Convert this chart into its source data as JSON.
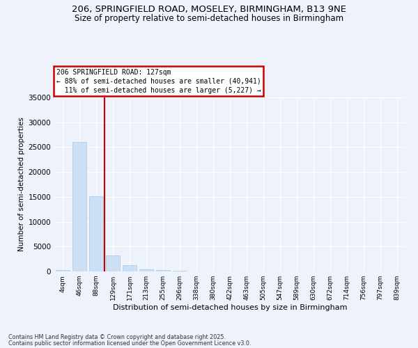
{
  "title_line1": "206, SPRINGFIELD ROAD, MOSELEY, BIRMINGHAM, B13 9NE",
  "title_line2": "Size of property relative to semi-detached houses in Birmingham",
  "xlabel": "Distribution of semi-detached houses by size in Birmingham",
  "ylabel": "Number of semi-detached properties",
  "categories": [
    "4sqm",
    "46sqm",
    "88sqm",
    "129sqm",
    "171sqm",
    "213sqm",
    "255sqm",
    "296sqm",
    "338sqm",
    "380sqm",
    "422sqm",
    "463sqm",
    "505sqm",
    "547sqm",
    "589sqm",
    "630sqm",
    "672sqm",
    "714sqm",
    "756sqm",
    "797sqm",
    "839sqm"
  ],
  "values": [
    350,
    26100,
    15100,
    3200,
    1200,
    450,
    250,
    150,
    50,
    30,
    20,
    15,
    10,
    8,
    5,
    4,
    3,
    2,
    2,
    1,
    1
  ],
  "bar_color": "#cce0f5",
  "bar_edgecolor": "#a8c8e8",
  "vline_color": "#cc0000",
  "annotation_text": "206 SPRINGFIELD ROAD: 127sqm\n← 88% of semi-detached houses are smaller (40,941)\n  11% of semi-detached houses are larger (5,227) →",
  "annotation_box_color": "#cc0000",
  "annotation_bg": "#ffffff",
  "ylim": [
    0,
    35000
  ],
  "yticks": [
    0,
    5000,
    10000,
    15000,
    20000,
    25000,
    30000,
    35000
  ],
  "footer_line1": "Contains HM Land Registry data © Crown copyright and database right 2025.",
  "footer_line2": "Contains public sector information licensed under the Open Government Licence v3.0.",
  "background_color": "#eef2fb",
  "grid_color": "#ffffff"
}
